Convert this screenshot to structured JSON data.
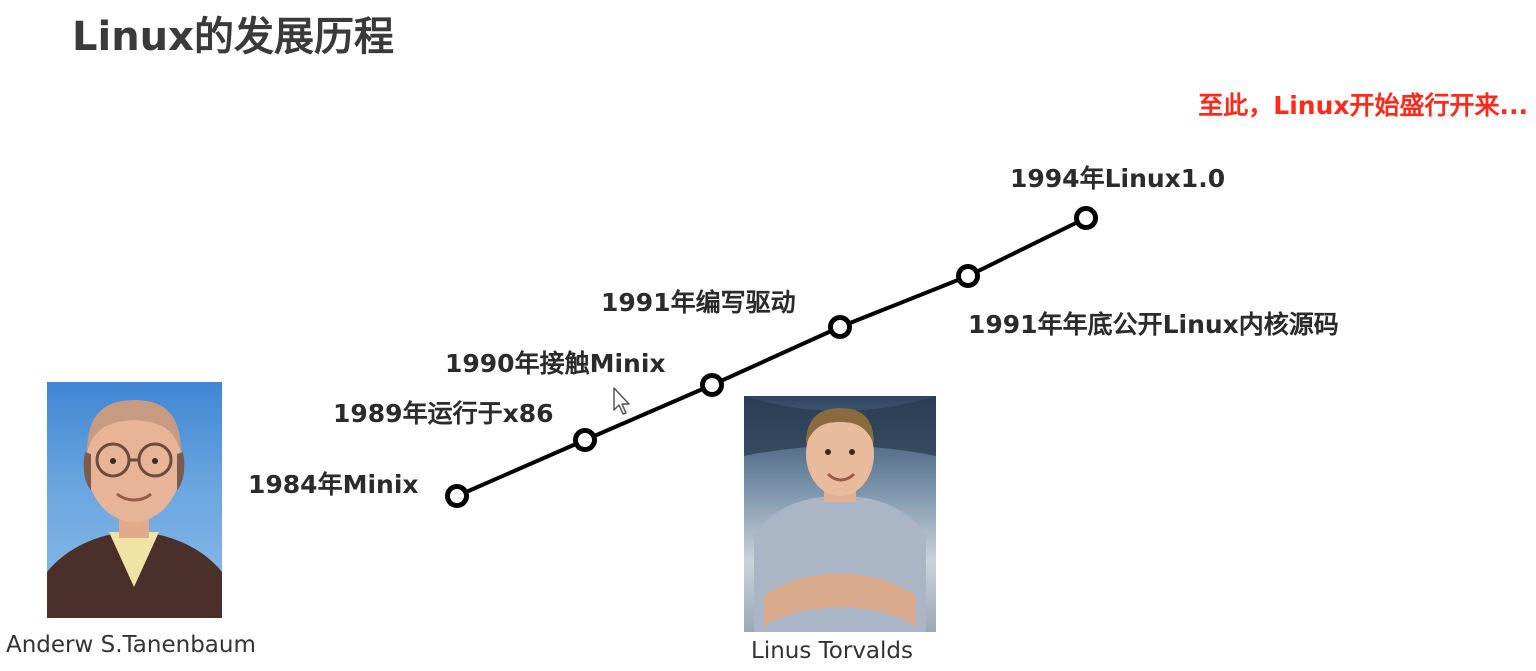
{
  "title": "Linux的发展历程",
  "note": {
    "text": "至此，Linux开始盛行开来...",
    "color": "#ff2a1a"
  },
  "timeline": {
    "line_color": "#000000",
    "events": [
      {
        "label": "1984年Minix"
      },
      {
        "label": "1989年运行于x86"
      },
      {
        "label": "1990年接触Minix"
      },
      {
        "label": "1991年编写驱动"
      },
      {
        "label": "1991年年底公开Linux内核源码"
      },
      {
        "label": "1994年Linux1.0"
      }
    ]
  },
  "people": [
    {
      "caption": "Anderw S.Tanenbaum",
      "icon": "portrait-photo"
    },
    {
      "caption": "Linus Torvalds",
      "icon": "portrait-photo"
    }
  ]
}
